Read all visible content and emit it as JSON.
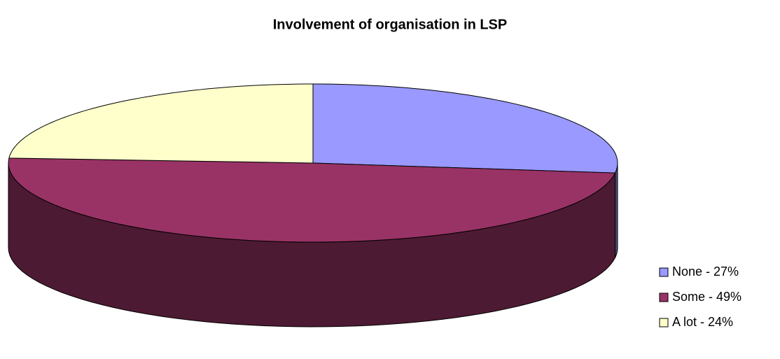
{
  "chart_data": {
    "type": "pie",
    "title": "Involvement of organisation in LSP",
    "categories": [
      "None - 27%",
      "Some - 49%",
      "A lot - 24%"
    ],
    "values": [
      27,
      49,
      24
    ],
    "colors": [
      "#9999ff",
      "#993366",
      "#ffffcc"
    ],
    "legend": "right"
  }
}
